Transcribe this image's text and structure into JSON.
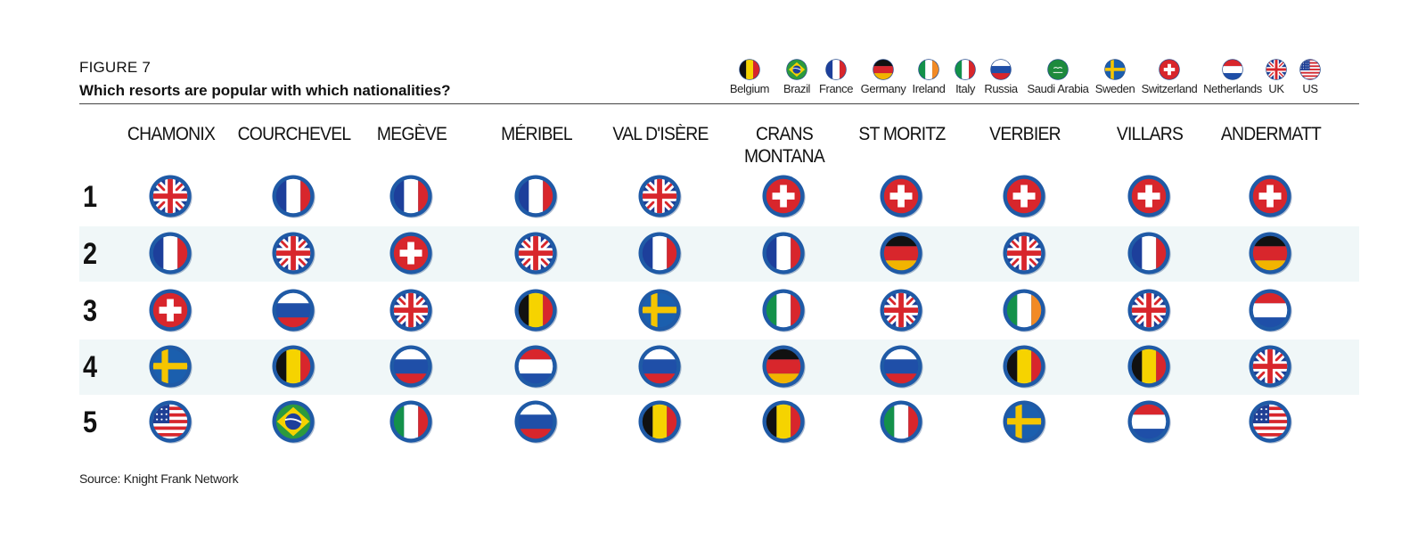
{
  "figure_label": "FIGURE 7",
  "title": "Which resorts are popular with which nationalities?",
  "source": "Source: Knight Frank Network",
  "legend": [
    {
      "label": "Belgium",
      "flag": "belgium"
    },
    {
      "label": "Brazil",
      "flag": "brazil"
    },
    {
      "label": "France",
      "flag": "france"
    },
    {
      "label": "Germany",
      "flag": "germany"
    },
    {
      "label": "Ireland",
      "flag": "ireland"
    },
    {
      "label": "Italy",
      "flag": "italy"
    },
    {
      "label": "Russia",
      "flag": "russia"
    },
    {
      "label": "Saudi Arabia",
      "flag": "saudi-arabia"
    },
    {
      "label": "Sweden",
      "flag": "sweden"
    },
    {
      "label": "Switzerland",
      "flag": "switzerland"
    },
    {
      "label": "Netherlands",
      "flag": "netherlands"
    },
    {
      "label": "UK",
      "flag": "uk"
    },
    {
      "label": "US",
      "flag": "us"
    }
  ],
  "chart_data": {
    "type": "table",
    "columns": [
      "CHAMONIX",
      "COURCHEVEL",
      "MEGÈVE",
      "MÉRIBEL",
      "VAL D'ISÈRE",
      "CRANS\nMONTANA",
      "ST MORITZ",
      "VERBIER",
      "VILLARS",
      "ANDERMATT"
    ],
    "rows": [
      "1",
      "2",
      "3",
      "4",
      "5"
    ],
    "cells": [
      [
        "uk",
        "france",
        "france",
        "france",
        "uk",
        "switzerland",
        "switzerland",
        "switzerland",
        "switzerland",
        "switzerland"
      ],
      [
        "france",
        "uk",
        "switzerland",
        "uk",
        "france",
        "france",
        "germany",
        "uk",
        "france",
        "germany"
      ],
      [
        "switzerland",
        "russia",
        "uk",
        "belgium",
        "sweden",
        "italy",
        "uk",
        "ireland",
        "uk",
        "netherlands"
      ],
      [
        "sweden",
        "belgium",
        "russia",
        "netherlands",
        "russia",
        "germany",
        "russia",
        "belgium",
        "belgium",
        "uk"
      ],
      [
        "us",
        "brazil",
        "italy",
        "russia",
        "belgium",
        "belgium",
        "italy",
        "sweden",
        "netherlands",
        "us"
      ]
    ],
    "colors": {
      "ring": "#1f5aa6",
      "france_blue": "#1d3f9b",
      "red": "#d8262c",
      "belgium_yellow": "#f6d300",
      "germany_gold": "#f2b400",
      "italy_green": "#13914a",
      "ireland_orange": "#f28a25",
      "sweden_blue": "#1b5fae",
      "sweden_yellow": "#f5c500",
      "brazil_green": "#2c9a3d",
      "saudi_green": "#1d8a3d",
      "band": "#f0f7f8"
    }
  }
}
